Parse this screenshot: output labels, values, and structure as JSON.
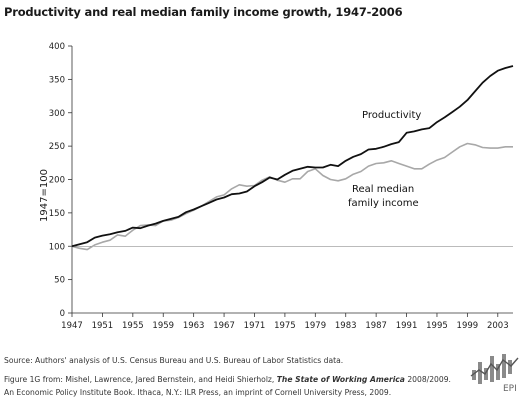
{
  "title": "Productivity and real median family income growth, 1947-2006",
  "chart_data": {
    "type": "line",
    "xlabel": "",
    "ylabel": "1947=100",
    "xlim": [
      1947,
      2005
    ],
    "ylim": [
      0,
      400
    ],
    "yticks": [
      0,
      50,
      100,
      150,
      200,
      250,
      300,
      350,
      400
    ],
    "xticks": [
      1947,
      1951,
      1955,
      1959,
      1963,
      1967,
      1971,
      1975,
      1979,
      1983,
      1987,
      1991,
      1995,
      1999,
      2003
    ],
    "reference_line": 100,
    "grid": false,
    "series": [
      {
        "name": "Productivity",
        "color": "#111111",
        "x": [
          1947,
          1948,
          1949,
          1950,
          1951,
          1952,
          1953,
          1954,
          1955,
          1956,
          1957,
          1958,
          1959,
          1960,
          1961,
          1962,
          1963,
          1964,
          1965,
          1966,
          1967,
          1968,
          1969,
          1970,
          1971,
          1972,
          1973,
          1974,
          1975,
          1976,
          1977,
          1978,
          1979,
          1980,
          1981,
          1982,
          1983,
          1984,
          1985,
          1986,
          1987,
          1988,
          1989,
          1990,
          1991,
          1992,
          1993,
          1994,
          1995,
          1996,
          1997,
          1998,
          1999,
          2000,
          2001,
          2002,
          2003,
          2004,
          2005
        ],
        "values": [
          100,
          103,
          106,
          113,
          116,
          118,
          121,
          123,
          128,
          127,
          131,
          134,
          138,
          141,
          144,
          151,
          155,
          160,
          165,
          170,
          173,
          178,
          179,
          182,
          190,
          196,
          203,
          200,
          207,
          213,
          216,
          219,
          218,
          218,
          222,
          220,
          228,
          234,
          238,
          245,
          246,
          249,
          253,
          256,
          270,
          272,
          275,
          277,
          286,
          293,
          301,
          309,
          319,
          332,
          345,
          355,
          363,
          367,
          370
        ]
      },
      {
        "name": "Real median family income",
        "color": "#a8a8a8",
        "x": [
          1947,
          1948,
          1949,
          1950,
          1951,
          1952,
          1953,
          1954,
          1955,
          1956,
          1957,
          1958,
          1959,
          1960,
          1961,
          1962,
          1963,
          1964,
          1965,
          1966,
          1967,
          1968,
          1969,
          1970,
          1971,
          1972,
          1973,
          1974,
          1975,
          1976,
          1977,
          1978,
          1979,
          1980,
          1981,
          1982,
          1983,
          1984,
          1985,
          1986,
          1987,
          1988,
          1989,
          1990,
          1991,
          1992,
          1993,
          1994,
          1995,
          1996,
          1997,
          1998,
          1999,
          2000,
          2001,
          2002,
          2003,
          2004,
          2005
        ],
        "values": [
          100,
          97,
          95,
          102,
          106,
          109,
          117,
          115,
          124,
          131,
          132,
          131,
          138,
          139,
          143,
          149,
          154,
          160,
          167,
          174,
          177,
          186,
          192,
          190,
          191,
          199,
          204,
          199,
          196,
          201,
          201,
          212,
          216,
          206,
          200,
          198,
          201,
          208,
          212,
          220,
          224,
          225,
          228,
          224,
          220,
          216,
          216,
          223,
          229,
          233,
          241,
          249,
          254,
          252,
          248,
          247,
          247,
          249,
          249
        ]
      }
    ],
    "annotations": [
      {
        "text": "Productivity",
        "series": 0
      },
      {
        "text": "Real median",
        "series": 1
      },
      {
        "text": "family income",
        "series": 1
      }
    ]
  },
  "footer": {
    "source": "Source: Authors' analysis of U.S. Census Bureau and U.S. Bureau of Labor Statistics data.",
    "figure_prefix": "Figure 1G from: Mishel, Lawrence, Jared Bernstein, and Heidi Shierholz, ",
    "book_title": "The State of Working America",
    "figure_suffix": " 2008/2009.",
    "line3": "An Economic Policy Institute Book. Ithaca, N.Y.: ILR Press, an imprint of Cornell University Press, 2009."
  },
  "logo": {
    "text": "EPI"
  }
}
